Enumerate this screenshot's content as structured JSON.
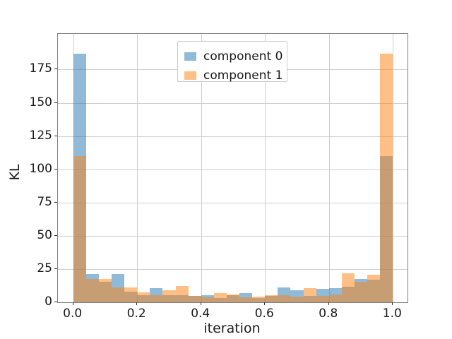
{
  "chart_data": {
    "type": "bar",
    "subtype": "overlapping-histograms",
    "title": "",
    "xlabel": "iteration",
    "ylabel": "KL",
    "x_tick_labels": [
      "0.0",
      "0.2",
      "0.4",
      "0.6",
      "0.8",
      "1.0"
    ],
    "x_tick_values": [
      0.0,
      0.2,
      0.4,
      0.6,
      0.8,
      1.0
    ],
    "y_tick_labels": [
      "0",
      "25",
      "50",
      "75",
      "100",
      "125",
      "150",
      "175"
    ],
    "y_tick_values": [
      0,
      25,
      50,
      75,
      100,
      125,
      150,
      175
    ],
    "xlim": [
      -0.048,
      1.046
    ],
    "ylim": [
      0,
      202
    ],
    "grid": true,
    "bin_edges": [
      0.0,
      0.04,
      0.08,
      0.12,
      0.16,
      0.2,
      0.24,
      0.28,
      0.32,
      0.36,
      0.4,
      0.44,
      0.48,
      0.52,
      0.56,
      0.6,
      0.64,
      0.68,
      0.72,
      0.76,
      0.8,
      0.84,
      0.88,
      0.92,
      0.96,
      1.0
    ],
    "series": [
      {
        "name": "component 0",
        "color": "#1f77b4",
        "alpha": 0.5,
        "values": [
          187,
          21,
          15,
          21,
          8,
          5,
          10.5,
          5,
          5,
          4.5,
          5,
          3,
          5,
          7,
          3,
          4.5,
          11,
          9,
          4.5,
          10,
          10.5,
          11.5,
          17.5,
          17,
          110
        ]
      },
      {
        "name": "component 1",
        "color": "#ff7f0e",
        "alpha": 0.5,
        "values": [
          110,
          17.5,
          17.5,
          11,
          11,
          7.5,
          5,
          9,
          12,
          4.5,
          3.5,
          7,
          5.5,
          3.5,
          4,
          5,
          5,
          4,
          10.5,
          4.5,
          5.5,
          21.5,
          15,
          20.5,
          187
        ]
      }
    ],
    "legend": {
      "position": "upper center",
      "entries": [
        "component 0",
        "component 1"
      ]
    },
    "colors": {
      "grid": "#cfcfcf",
      "spine": "#808080",
      "text": "#1a1a1a",
      "background": "#ffffff"
    }
  }
}
